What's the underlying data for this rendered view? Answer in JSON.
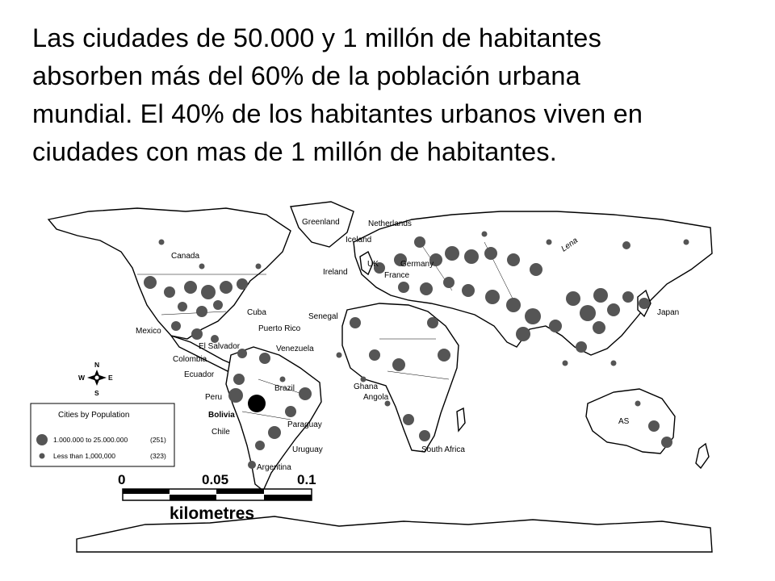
{
  "title_lines": [
    "Las ciudades de 50.000 y 1 millón de habitantes",
    "absorben más del 60% de la población urbana",
    "mundial. El 40% de los habitantes urbanos viven en",
    "ciudades con mas de 1 millón de habitantes."
  ],
  "map": {
    "country_labels": [
      "Greenland",
      "Netherlands",
      "Iceland",
      "Canada",
      "Ireland",
      "UK",
      "Germany",
      "France",
      "Cuba",
      "Puerto Rico",
      "Mexico",
      "El Salvador",
      "Venezuela",
      "Colombia",
      "Ecuador",
      "Senegal",
      "Brazil",
      "Peru",
      "Bolivia",
      "Chile",
      "Paraguay",
      "Uruguay",
      "Argentina",
      "Ghana",
      "Angola",
      "South Africa",
      "Japan",
      "AS",
      "Lena"
    ],
    "legend": {
      "title": "Cities by Population",
      "items": [
        {
          "label": "1.000.000 to 25.000.000",
          "count": "(251)"
        },
        {
          "label": "Less than 1,000,000",
          "count": "(323)"
        }
      ]
    },
    "compass": {
      "n": "N",
      "s": "S",
      "e": "E",
      "w": "W"
    },
    "scale_bar": {
      "ticks": [
        "0",
        "0.05",
        "0.1"
      ],
      "unit": "kilometres"
    },
    "colors": {
      "city_dot": "#555555",
      "land": "#ffffff",
      "outline": "#000000"
    }
  }
}
